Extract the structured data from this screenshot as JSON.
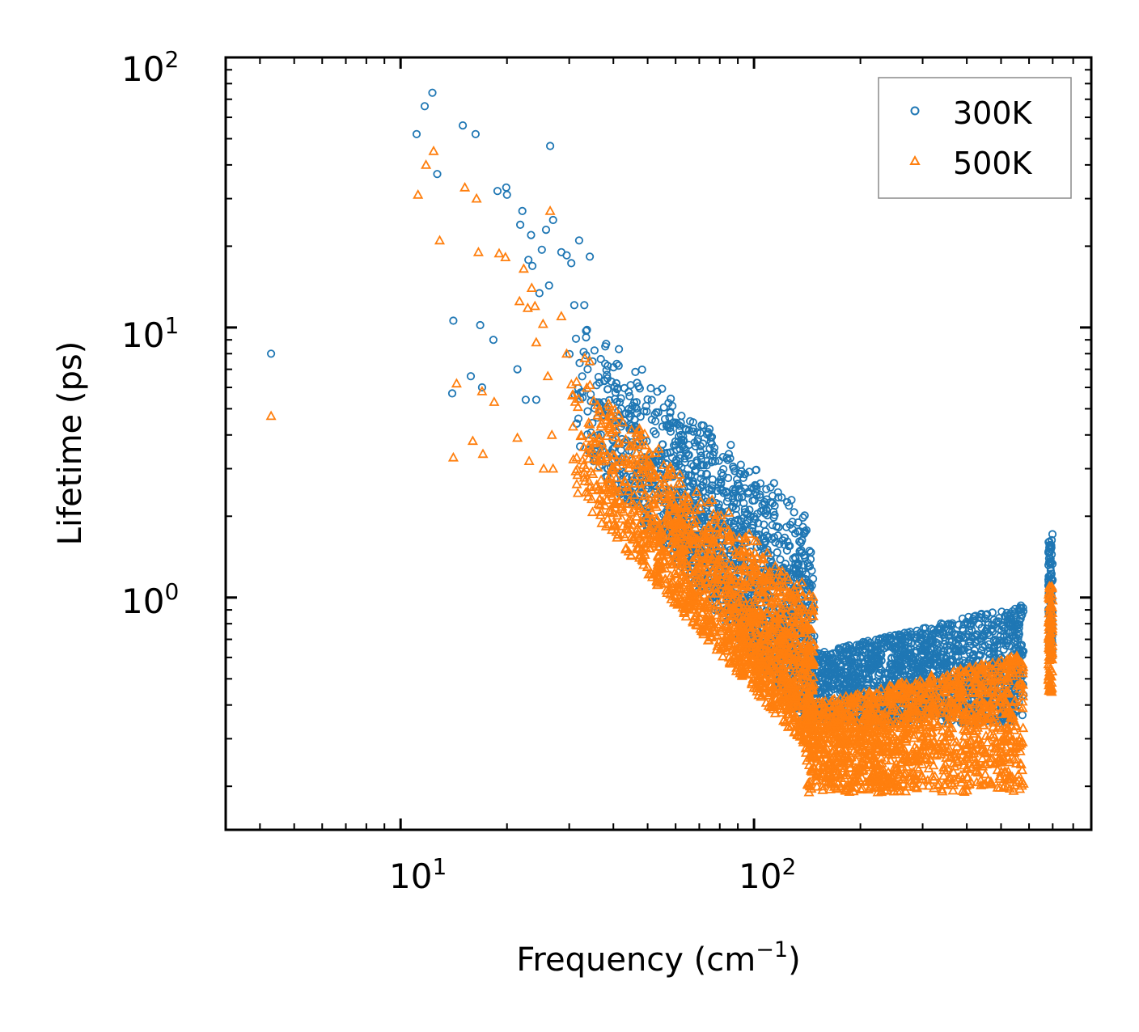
{
  "chart_data": {
    "type": "scatter",
    "xscale": "log",
    "yscale": "log",
    "xlim": [
      3.2,
      900
    ],
    "ylim": [
      0.138,
      100
    ],
    "xlabel_main": "Frequency (cm",
    "xlabel_sup": "−1",
    "xlabel_close": ")",
    "ylabel": "Lifetime (ps)",
    "x_ticks": [
      {
        "base": "10",
        "exp": "1",
        "value": 10
      },
      {
        "base": "10",
        "exp": "2",
        "value": 100
      }
    ],
    "y_ticks": [
      {
        "base": "10",
        "exp": "0",
        "value": 1
      },
      {
        "base": "10",
        "exp": "1",
        "value": 10
      },
      {
        "base": "10",
        "exp": "2",
        "value": 100
      }
    ],
    "legend_position": "top-right",
    "series": [
      {
        "name": "300K",
        "marker": "circle",
        "color": "#1f77b4",
        "points": [
          [
            4.3,
            8.0
          ],
          [
            11.1,
            52
          ],
          [
            11.7,
            66
          ],
          [
            12.3,
            74
          ],
          [
            12.7,
            37
          ],
          [
            14.0,
            5.7
          ],
          [
            14.1,
            10.6
          ],
          [
            15.0,
            56
          ],
          [
            15.8,
            6.6
          ],
          [
            16.3,
            52
          ],
          [
            16.8,
            10.2
          ],
          [
            17.0,
            6.0
          ],
          [
            18.3,
            9.0
          ],
          [
            18.8,
            32
          ],
          [
            19.9,
            33
          ],
          [
            20.0,
            31
          ],
          [
            21.4,
            7.0
          ],
          [
            21.8,
            24
          ],
          [
            22.1,
            27
          ],
          [
            22.6,
            5.4
          ],
          [
            23.0,
            17.8
          ],
          [
            23.4,
            22
          ],
          [
            23.6,
            16.9
          ],
          [
            24.2,
            5.4
          ],
          [
            24.7,
            13.4
          ],
          [
            25.1,
            19.4
          ],
          [
            25.8,
            23
          ],
          [
            26.3,
            14.3
          ],
          [
            26.5,
            47
          ],
          [
            27.0,
            25
          ],
          [
            28.5,
            19.0
          ],
          [
            29.5,
            18.5
          ],
          [
            30.4,
            17.3
          ],
          [
            31.0,
            12.1
          ],
          [
            32.0,
            21
          ],
          [
            33.1,
            12.1
          ],
          [
            34.3,
            18.3
          ]
        ],
        "band": {
          "x_start": 30,
          "x_end": 148,
          "y_hi_start": 12.0,
          "y_hi_end": 2.0,
          "y_lo_start": 4.0,
          "y_lo_end": 0.32
        },
        "plateau": {
          "x_start": 148,
          "x_end": 580,
          "y_lo": 0.34,
          "y_hi_start": 0.62,
          "y_hi_end": 0.95
        },
        "edge_cluster": {
          "x": 690,
          "y_lo": 0.6,
          "y_hi": 1.72
        }
      },
      {
        "name": "500K",
        "marker": "triangle",
        "color": "#ff7f0e",
        "points": [
          [
            4.3,
            4.7
          ],
          [
            11.2,
            31
          ],
          [
            11.8,
            40
          ],
          [
            12.4,
            45
          ],
          [
            12.9,
            21
          ],
          [
            14.1,
            3.3
          ],
          [
            14.4,
            6.2
          ],
          [
            15.2,
            33
          ],
          [
            16.0,
            3.8
          ],
          [
            16.4,
            30
          ],
          [
            16.6,
            19
          ],
          [
            17.1,
            3.4
          ],
          [
            17.0,
            5.8
          ],
          [
            18.4,
            5.3
          ],
          [
            19.0,
            18.8
          ],
          [
            19.8,
            18.2
          ],
          [
            21.4,
            3.9
          ],
          [
            21.7,
            12.5
          ],
          [
            22.3,
            16.5
          ],
          [
            22.9,
            11.8
          ],
          [
            23.1,
            3.2
          ],
          [
            23.5,
            14.0
          ],
          [
            24.0,
            12.0
          ],
          [
            24.2,
            8.8
          ],
          [
            25.3,
            10.3
          ],
          [
            25.4,
            3.0
          ],
          [
            26.1,
            6.6
          ],
          [
            26.5,
            27
          ],
          [
            26.8,
            4.0
          ],
          [
            27.0,
            3.0
          ],
          [
            28.5,
            11.0
          ],
          [
            29.5,
            8.0
          ],
          [
            30.6,
            5.6
          ],
          [
            31.5,
            3.3
          ],
          [
            33.2,
            7.7
          ],
          [
            34.3,
            7.5
          ]
        ],
        "band": {
          "x_start": 30,
          "x_end": 148,
          "y_hi_start": 7.5,
          "y_hi_end": 1.05,
          "y_lo_start": 2.5,
          "y_lo_end": 0.26
        },
        "plateau": {
          "x_start": 140,
          "x_end": 580,
          "y_lo": 0.19,
          "y_hi_start": 0.4,
          "y_hi_end": 0.62
        },
        "edge_cluster": {
          "x": 690,
          "y_lo": 0.44,
          "y_hi": 1.12
        }
      }
    ]
  }
}
